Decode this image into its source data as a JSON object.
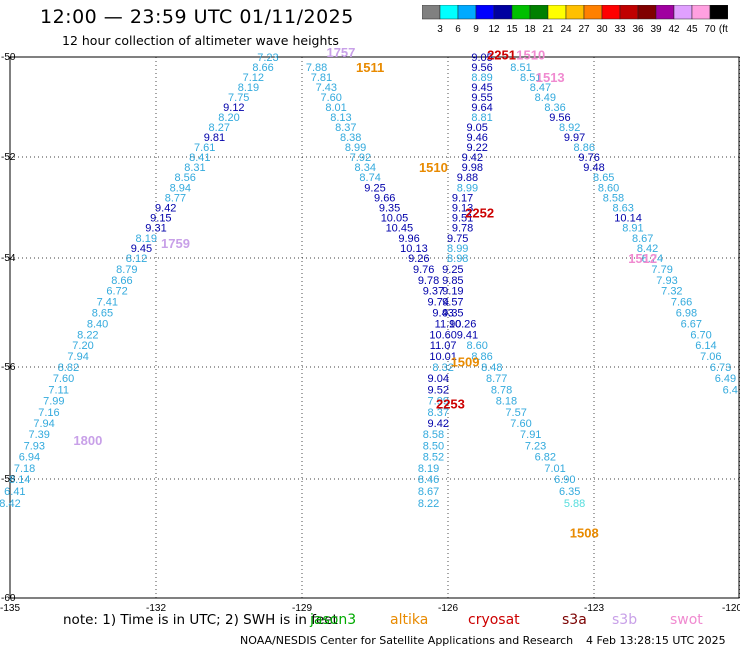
{
  "title": "12:00 — 23:59 UTC 01/11/2025",
  "subtitle": "12 hour collection of altimeter wave heights",
  "colorbar": {
    "ticks": [
      "3",
      "6",
      "9",
      "12",
      "15",
      "18",
      "21",
      "24",
      "27",
      "30",
      "33",
      "36",
      "39",
      "42",
      "45",
      "70",
      "(ft)"
    ],
    "colors": [
      "#808080",
      "#00ffff",
      "#00aaff",
      "#0000ff",
      "#0000a0",
      "#00c000",
      "#008000",
      "#ffff00",
      "#ffc000",
      "#ff8000",
      "#ff0000",
      "#c00000",
      "#800000",
      "#a000a0",
      "#e0a0ff",
      "#ffa0e0",
      "#000000"
    ]
  },
  "axes": {
    "lat_labels": [
      "-50",
      "-52",
      "-54",
      "-56",
      "-58",
      "-60"
    ],
    "lon_labels": [
      "-135",
      "-132",
      "-129",
      "-126",
      "-123",
      "-120"
    ]
  },
  "tracks": [
    {
      "name": "1757",
      "label_color": "#c8a0e8",
      "label": "1757",
      "label_lon": -128.2,
      "label_lat": -49.9
    },
    {
      "name": "1511",
      "label_color": "#e88a00",
      "label": "1511",
      "label_lon": -127.6,
      "label_lat": -50.2
    },
    {
      "name": "1510",
      "label_color": "#e88a00",
      "label": "1510",
      "label_lon": -126.3,
      "label_lat": -52.2
    },
    {
      "name": "1759",
      "label_color": "#c8a0e8",
      "label": "1759",
      "label_lon": -131.6,
      "label_lat": -53.7
    },
    {
      "name": "1800",
      "label_color": "#c8a0e8",
      "label": "1800",
      "label_lon": -133.4,
      "label_lat": -57.3
    },
    {
      "name": "2251",
      "label_color": "#cc0000",
      "label": "2251",
      "label_lon": -124.9,
      "label_lat": -49.95
    },
    {
      "name": "1510b",
      "label_color": "#f08ad0",
      "label": "1510",
      "label_lon": -124.3,
      "label_lat": -49.95
    },
    {
      "name": "1513",
      "label_color": "#f08ad0",
      "label": "1513",
      "label_lon": -123.9,
      "label_lat": -50.4
    },
    {
      "name": "2252",
      "label_color": "#cc0000",
      "label": "2252",
      "label_lon": -125.35,
      "label_lat": -53.1
    },
    {
      "name": "1512",
      "label_color": "#f08ad0",
      "label": "1512",
      "label_lon": -122.0,
      "label_lat": -54.0
    },
    {
      "name": "1509",
      "label_color": "#e88a00",
      "label": "1509",
      "label_lon": -125.65,
      "label_lat": -55.9
    },
    {
      "name": "2253",
      "label_color": "#cc0000",
      "label": "2253",
      "label_lon": -125.95,
      "label_lat": -56.65
    },
    {
      "name": "1508",
      "label_color": "#e88a00",
      "label": "1508",
      "label_lon": -123.2,
      "label_lat": -58.9
    }
  ],
  "wave_labels": [
    [
      "7.23",
      -129.7,
      -50.0,
      "#33aadd"
    ],
    [
      "8.66",
      -129.8,
      -50.2,
      "#33aadd"
    ],
    [
      "7.12",
      -130.0,
      -50.4,
      "#33aadd"
    ],
    [
      "8.19",
      -130.1,
      -50.6,
      "#33aadd"
    ],
    [
      "7.75",
      -130.3,
      -50.8,
      "#33aadd"
    ],
    [
      "9.12",
      -130.4,
      -51.0,
      "#0000aa"
    ],
    [
      "8.20",
      -130.5,
      -51.2,
      "#33aadd"
    ],
    [
      "8.27",
      -130.7,
      -51.4,
      "#33aadd"
    ],
    [
      "9.81",
      -130.8,
      -51.6,
      "#0000aa"
    ],
    [
      "7.61",
      -131.0,
      -51.8,
      "#33aadd"
    ],
    [
      "8.41",
      -131.1,
      -52.0,
      "#33aadd"
    ],
    [
      "8.31",
      -131.2,
      -52.2,
      "#33aadd"
    ],
    [
      "8.56",
      -131.4,
      -52.4,
      "#33aadd"
    ],
    [
      "8.94",
      -131.5,
      -52.6,
      "#33aadd"
    ],
    [
      "8.77",
      -131.6,
      -52.8,
      "#33aadd"
    ],
    [
      "9.42",
      -131.8,
      -53.0,
      "#0000aa"
    ],
    [
      "9.15",
      -131.9,
      -53.2,
      "#0000aa"
    ],
    [
      "9.31",
      -132.0,
      -53.4,
      "#0000aa"
    ],
    [
      "8.19",
      -132.2,
      -53.6,
      "#33aadd"
    ],
    [
      "9.45",
      -132.3,
      -53.8,
      "#0000aa"
    ],
    [
      "8.12",
      -132.4,
      -54.0,
      "#33aadd"
    ],
    [
      "8.79",
      -132.6,
      -54.2,
      "#33aadd"
    ],
    [
      "8.66",
      -132.7,
      -54.4,
      "#33aadd"
    ],
    [
      "6.72",
      -132.8,
      -54.6,
      "#33aadd"
    ],
    [
      "7.41",
      -133.0,
      -54.8,
      "#33aadd"
    ],
    [
      "8.65",
      -133.1,
      -55.0,
      "#33aadd"
    ],
    [
      "8.40",
      -133.2,
      -55.2,
      "#33aadd"
    ],
    [
      "8.22",
      -133.4,
      -55.4,
      "#33aadd"
    ],
    [
      "7.20",
      -133.5,
      -55.6,
      "#33aadd"
    ],
    [
      "7.94",
      -133.6,
      -55.8,
      "#33aadd"
    ],
    [
      "8.82",
      -133.8,
      -56.0,
      "#33aadd"
    ],
    [
      "7.60",
      -133.9,
      -56.2,
      "#33aadd"
    ],
    [
      "7.11",
      -134.0,
      -56.4,
      "#33aadd"
    ],
    [
      "7.99",
      -134.1,
      -56.6,
      "#33aadd"
    ],
    [
      "7.16",
      -134.2,
      -56.8,
      "#33aadd"
    ],
    [
      "7.94",
      -134.3,
      -57.0,
      "#33aadd"
    ],
    [
      "7.39",
      -134.4,
      -57.2,
      "#33aadd"
    ],
    [
      "7.93",
      -134.5,
      -57.4,
      "#33aadd"
    ],
    [
      "6.94",
      -134.6,
      -57.6,
      "#33aadd"
    ],
    [
      "7.18",
      -134.7,
      -57.8,
      "#33aadd"
    ],
    [
      "8.14",
      -134.8,
      -58.0,
      "#33aadd"
    ],
    [
      "6.41",
      -134.9,
      -58.2,
      "#33aadd"
    ],
    [
      "8.42",
      -135.0,
      -58.4,
      "#33aadd"
    ],
    [
      "7.88",
      -128.7,
      -50.2,
      "#33aadd"
    ],
    [
      "7.81",
      -128.6,
      -50.4,
      "#33aadd"
    ],
    [
      "7.43",
      -128.5,
      -50.6,
      "#33aadd"
    ],
    [
      "7.60",
      -128.4,
      -50.8,
      "#33aadd"
    ],
    [
      "8.01",
      -128.3,
      -51.0,
      "#33aadd"
    ],
    [
      "8.13",
      -128.2,
      -51.2,
      "#33aadd"
    ],
    [
      "8.37",
      -128.1,
      -51.4,
      "#33aadd"
    ],
    [
      "8.38",
      -128.0,
      -51.6,
      "#33aadd"
    ],
    [
      "8.99",
      -127.9,
      -51.8,
      "#33aadd"
    ],
    [
      "7.92",
      -127.8,
      -52.0,
      "#33aadd"
    ],
    [
      "8.34",
      -127.7,
      -52.2,
      "#33aadd"
    ],
    [
      "8.74",
      -127.6,
      -52.4,
      "#33aadd"
    ],
    [
      "9.25",
      -127.5,
      -52.6,
      "#0000aa"
    ],
    [
      "9.66",
      -127.3,
      -52.8,
      "#0000aa"
    ],
    [
      "9.35",
      -127.2,
      -53.0,
      "#0000aa"
    ],
    [
      "10.05",
      -127.1,
      -53.2,
      "#0000aa"
    ],
    [
      "10.45",
      -127.0,
      -53.4,
      "#0000aa"
    ],
    [
      "9.96",
      -126.8,
      -53.6,
      "#0000aa"
    ],
    [
      "10.13",
      -126.7,
      -53.8,
      "#0000aa"
    ],
    [
      "9.26",
      -126.6,
      -54.0,
      "#0000aa"
    ],
    [
      "9.76",
      -126.5,
      -54.2,
      "#0000aa"
    ],
    [
      "9.78",
      -126.4,
      -54.4,
      "#0000aa"
    ],
    [
      "9.37",
      -126.3,
      -54.6,
      "#0000aa"
    ],
    [
      "9.74",
      -126.2,
      -54.8,
      "#0000aa"
    ],
    [
      "9.43",
      -126.1,
      -55.0,
      "#0000aa"
    ],
    [
      "11.90",
      -126.0,
      -55.2,
      "#0000aa"
    ],
    [
      "10.60",
      -126.1,
      -55.4,
      "#0000aa"
    ],
    [
      "11.07",
      -126.1,
      -55.6,
      "#0000aa"
    ],
    [
      "10.01",
      -126.1,
      -55.8,
      "#0000aa"
    ],
    [
      "8.32",
      -126.1,
      -56.0,
      "#33aadd"
    ],
    [
      "9.04",
      -126.2,
      -56.2,
      "#0000aa"
    ],
    [
      "9.52",
      -126.2,
      -56.4,
      "#0000aa"
    ],
    [
      "7.99",
      -126.2,
      -56.6,
      "#33aadd"
    ],
    [
      "8.37",
      -126.2,
      -56.8,
      "#33aadd"
    ],
    [
      "9.42",
      -126.2,
      -57.0,
      "#0000aa"
    ],
    [
      "8.58",
      -126.3,
      -57.2,
      "#33aadd"
    ],
    [
      "8.50",
      -126.3,
      -57.4,
      "#33aadd"
    ],
    [
      "8.52",
      -126.3,
      -57.6,
      "#33aadd"
    ],
    [
      "8.19",
      -126.4,
      -57.8,
      "#33aadd"
    ],
    [
      "8.46",
      -126.4,
      -58.0,
      "#33aadd"
    ],
    [
      "8.67",
      -126.4,
      -58.2,
      "#33aadd"
    ],
    [
      "8.22",
      -126.4,
      -58.4,
      "#33aadd"
    ],
    [
      "9.05",
      -125.3,
      -50.0,
      "#0000aa"
    ],
    [
      "9.56",
      -125.3,
      -50.2,
      "#0000aa"
    ],
    [
      "8.89",
      -125.3,
      -50.4,
      "#33aadd"
    ],
    [
      "9.45",
      -125.3,
      -50.6,
      "#0000aa"
    ],
    [
      "9.55",
      -125.3,
      -50.8,
      "#0000aa"
    ],
    [
      "9.64",
      -125.3,
      -51.0,
      "#0000aa"
    ],
    [
      "8.81",
      -125.3,
      -51.2,
      "#33aadd"
    ],
    [
      "9.05",
      -125.4,
      -51.4,
      "#0000aa"
    ],
    [
      "9.46",
      -125.4,
      -51.6,
      "#0000aa"
    ],
    [
      "9.22",
      -125.4,
      -51.8,
      "#0000aa"
    ],
    [
      "9.42",
      -125.5,
      -52.0,
      "#0000aa"
    ],
    [
      "9.98",
      -125.5,
      -52.2,
      "#0000aa"
    ],
    [
      "9.88",
      -125.6,
      -52.4,
      "#0000aa"
    ],
    [
      "8.99",
      -125.6,
      -52.6,
      "#33aadd"
    ],
    [
      "9.17",
      -125.7,
      -52.8,
      "#0000aa"
    ],
    [
      "9.13",
      -125.7,
      -53.0,
      "#0000aa"
    ],
    [
      "9.51",
      -125.7,
      -53.2,
      "#0000aa"
    ],
    [
      "9.78",
      -125.7,
      -53.4,
      "#0000aa"
    ],
    [
      "9.75",
      -125.8,
      -53.6,
      "#0000aa"
    ],
    [
      "8.99",
      -125.8,
      -53.8,
      "#33aadd"
    ],
    [
      "8.98",
      -125.8,
      -54.0,
      "#33aadd"
    ],
    [
      "9.25",
      -125.9,
      -54.2,
      "#0000aa"
    ],
    [
      "9.85",
      -125.9,
      -54.4,
      "#0000aa"
    ],
    [
      "9.19",
      -125.9,
      -54.6,
      "#0000aa"
    ],
    [
      "9.57",
      -125.9,
      -54.8,
      "#0000aa"
    ],
    [
      "9.35",
      -125.9,
      -55.0,
      "#0000aa"
    ],
    [
      "10.26",
      -125.7,
      -55.2,
      "#0000aa"
    ],
    [
      "9.41",
      -125.6,
      -55.4,
      "#0000aa"
    ],
    [
      "8.60",
      -125.4,
      -55.6,
      "#33aadd"
    ],
    [
      "8.86",
      -125.3,
      -55.8,
      "#33aadd"
    ],
    [
      "8.48",
      -125.1,
      -56.0,
      "#33aadd"
    ],
    [
      "8.77",
      -125.0,
      -56.2,
      "#33aadd"
    ],
    [
      "8.78",
      -124.9,
      -56.4,
      "#33aadd"
    ],
    [
      "8.18",
      -124.8,
      -56.6,
      "#33aadd"
    ],
    [
      "7.57",
      -124.6,
      -56.8,
      "#33aadd"
    ],
    [
      "7.60",
      -124.5,
      -57.0,
      "#33aadd"
    ],
    [
      "7.91",
      -124.3,
      -57.2,
      "#33aadd"
    ],
    [
      "7.23",
      -124.2,
      -57.4,
      "#33aadd"
    ],
    [
      "6.82",
      -124.0,
      -57.6,
      "#33aadd"
    ],
    [
      "7.01",
      -123.8,
      -57.8,
      "#33aadd"
    ],
    [
      "6.90",
      -123.6,
      -58.0,
      "#33aadd"
    ],
    [
      "6.35",
      -123.5,
      -58.2,
      "#33aadd"
    ],
    [
      "5.88",
      -123.4,
      -58.4,
      "#55dddd"
    ],
    [
      "8.51",
      -124.5,
      -50.2,
      "#33aadd"
    ],
    [
      "8.51",
      -124.3,
      -50.4,
      "#33aadd"
    ],
    [
      "8.47",
      -124.1,
      -50.6,
      "#33aadd"
    ],
    [
      "8.49",
      -124.0,
      -50.8,
      "#33aadd"
    ],
    [
      "8.36",
      -123.8,
      -51.0,
      "#33aadd"
    ],
    [
      "9.56",
      -123.7,
      -51.2,
      "#0000aa"
    ],
    [
      "8.92",
      -123.5,
      -51.4,
      "#33aadd"
    ],
    [
      "9.97",
      -123.4,
      -51.6,
      "#0000aa"
    ],
    [
      "8.86",
      -123.2,
      -51.8,
      "#33aadd"
    ],
    [
      "9.76",
      -123.1,
      -52.0,
      "#0000aa"
    ],
    [
      "9.48",
      -123.0,
      -52.2,
      "#0000aa"
    ],
    [
      "8.65",
      -122.8,
      -52.4,
      "#33aadd"
    ],
    [
      "8.60",
      -122.7,
      -52.6,
      "#33aadd"
    ],
    [
      "8.58",
      -122.6,
      -52.8,
      "#33aadd"
    ],
    [
      "8.63",
      -122.4,
      -53.0,
      "#33aadd"
    ],
    [
      "10.14",
      -122.3,
      -53.2,
      "#0000aa"
    ],
    [
      "8.91",
      -122.2,
      -53.4,
      "#33aadd"
    ],
    [
      "8.67",
      -122.0,
      -53.6,
      "#33aadd"
    ],
    [
      "8.42",
      -121.9,
      -53.8,
      "#33aadd"
    ],
    [
      "8.74",
      -121.8,
      -54.0,
      "#33aadd"
    ],
    [
      "7.79",
      -121.6,
      -54.2,
      "#33aadd"
    ],
    [
      "7.93",
      -121.5,
      -54.4,
      "#33aadd"
    ],
    [
      "7.32",
      -121.4,
      -54.6,
      "#33aadd"
    ],
    [
      "7.66",
      -121.2,
      -54.8,
      "#33aadd"
    ],
    [
      "6.98",
      -121.1,
      -55.0,
      "#33aadd"
    ],
    [
      "6.67",
      -121.0,
      -55.2,
      "#33aadd"
    ],
    [
      "6.70",
      -120.8,
      -55.4,
      "#33aadd"
    ],
    [
      "6.14",
      -120.7,
      -55.6,
      "#33aadd"
    ],
    [
      "7.06",
      -120.6,
      -55.8,
      "#33aadd"
    ],
    [
      "6.73",
      -120.4,
      -56.0,
      "#33aadd"
    ],
    [
      "6.49",
      -120.3,
      -56.2,
      "#33aadd"
    ],
    [
      "6.4",
      -120.2,
      -56.4,
      "#33aadd"
    ]
  ],
  "legend": {
    "note": "note: 1) Time is in UTC; 2) SWH is in feet",
    "satellites": [
      {
        "name": "jason3",
        "color": "#00aa00"
      },
      {
        "name": "altika",
        "color": "#e88a00"
      },
      {
        "name": "cryosat",
        "color": "#cc0000"
      },
      {
        "name": "s3a",
        "color": "#7a0000"
      },
      {
        "name": "s3b",
        "color": "#c8a0e8"
      },
      {
        "name": "swot",
        "color": "#f08ad0"
      }
    ]
  },
  "footer": {
    "left": "NOAA/NESDIS Center for Satellite Applications and Research",
    "right": "4 Feb 13:28:15 UTC 2025"
  }
}
